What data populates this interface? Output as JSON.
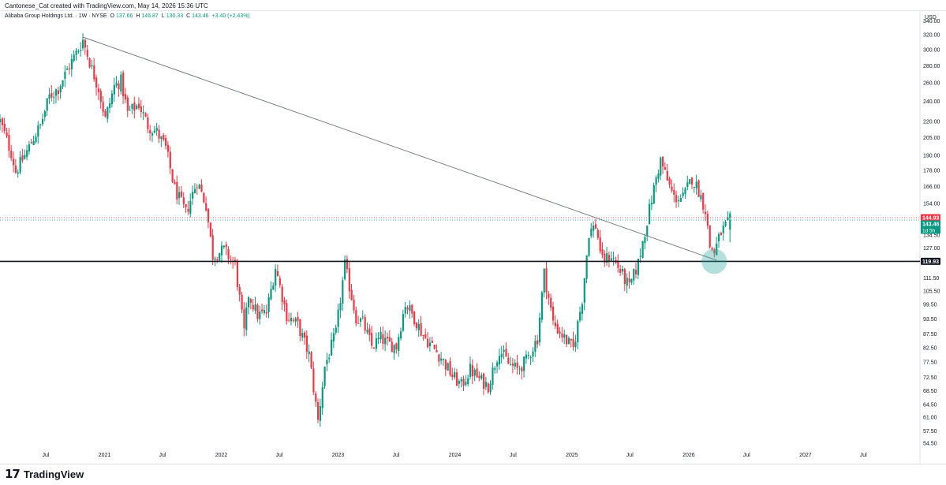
{
  "header": {
    "caption": "Cantonese_Cat created with TradingView.com, May 14, 2026 15:36 UTC"
  },
  "legend": {
    "symbol": "Alibaba Group Holdings Ltd. · 1W · NYSE",
    "o_label": "O",
    "o_value": "137.66",
    "h_label": "H",
    "h_value": "146.87",
    "l_label": "L",
    "l_value": "130.33",
    "c_label": "C",
    "c_value": "143.46",
    "change": "+3.40 (+2.43%)"
  },
  "branding": {
    "logo_glyph": "17",
    "name": "TradingView"
  },
  "colors": {
    "up": "#089981",
    "down": "#f23645",
    "support": "#131722",
    "trendline": "#787b86",
    "highlight": "#26a69a"
  },
  "chart_data": {
    "type": "candlestick",
    "symbol": "Alibaba Group Holdings Ltd.",
    "interval": "1W",
    "exchange": "NYSE",
    "currency_label": "USD",
    "y_scale": "log",
    "ylim": [
      53.8,
      350
    ],
    "y_ticks": [
      "340.00",
      "320.00",
      "300.00",
      "280.00",
      "260.00",
      "240.00",
      "220.00",
      "205.00",
      "190.00",
      "178.00",
      "166.00",
      "154.00",
      "134.50",
      "127.00",
      "111.50",
      "105.50",
      "99.50",
      "93.50",
      "87.50",
      "82.50",
      "77.50",
      "72.50",
      "68.50",
      "64.50",
      "61.00",
      "57.50",
      "54.50"
    ],
    "x_ticks": [
      {
        "label": "Jul",
        "date": "2020-07-01"
      },
      {
        "label": "2021",
        "date": "2021-01-01"
      },
      {
        "label": "Jul",
        "date": "2021-07-01"
      },
      {
        "label": "2022",
        "date": "2022-01-01"
      },
      {
        "label": "Jul",
        "date": "2022-07-01"
      },
      {
        "label": "2023",
        "date": "2023-01-01"
      },
      {
        "label": "Jul",
        "date": "2023-07-01"
      },
      {
        "label": "2024",
        "date": "2024-01-01"
      },
      {
        "label": "Jul",
        "date": "2024-07-01"
      },
      {
        "label": "2025",
        "date": "2025-01-01"
      },
      {
        "label": "Jul",
        "date": "2025-07-01"
      },
      {
        "label": "2026",
        "date": "2026-01-01"
      },
      {
        "label": "Jul",
        "date": "2026-07-01"
      },
      {
        "label": "2027",
        "date": "2027-01-01"
      },
      {
        "label": "Jul",
        "date": "2027-07-01"
      }
    ],
    "xlim": [
      "2020-02-09",
      "2027-12-25"
    ],
    "price_labels": [
      {
        "value": "144.93",
        "price": 144.93,
        "color": "#f23645"
      },
      {
        "value": "143.46",
        "price": 143.46,
        "color": "#089981",
        "sub": "1d 5h"
      },
      {
        "value": "119.93",
        "price": 119.93,
        "color": "#131722"
      }
    ],
    "support_line": {
      "price": 119.93
    },
    "trendline": {
      "start": {
        "date": "2020-10-25",
        "price": 317
      },
      "end": {
        "date": "2026-03-29",
        "price": 120.5
      }
    },
    "highlight": {
      "date": "2026-03-22",
      "price": 119.93
    },
    "anchors": [
      [
        "2020-02-09",
        220
      ],
      [
        "2020-03-15",
        192
      ],
      [
        "2020-03-29",
        177
      ],
      [
        "2020-05-03",
        193
      ],
      [
        "2020-05-24",
        205
      ],
      [
        "2020-06-14",
        216
      ],
      [
        "2020-07-12",
        245
      ],
      [
        "2020-08-09",
        254
      ],
      [
        "2020-09-06",
        275
      ],
      [
        "2020-10-11",
        301
      ],
      [
        "2020-10-25",
        313
      ],
      [
        "2020-11-22",
        276
      ],
      [
        "2020-12-13",
        254
      ],
      [
        "2021-01-03",
        222
      ],
      [
        "2021-01-31",
        256
      ],
      [
        "2021-02-21",
        262
      ],
      [
        "2021-03-14",
        228
      ],
      [
        "2021-04-18",
        237
      ],
      [
        "2021-05-16",
        216
      ],
      [
        "2021-06-13",
        210
      ],
      [
        "2021-07-11",
        196
      ],
      [
        "2021-08-08",
        164
      ],
      [
        "2021-09-12",
        148
      ],
      [
        "2021-10-17",
        170
      ],
      [
        "2021-11-14",
        153
      ],
      [
        "2021-12-05",
        123
      ],
      [
        "2022-01-09",
        126
      ],
      [
        "2022-02-13",
        118
      ],
      [
        "2022-03-13",
        88
      ],
      [
        "2022-03-27",
        104
      ],
      [
        "2022-04-24",
        95
      ],
      [
        "2022-05-22",
        96
      ],
      [
        "2022-06-19",
        117
      ],
      [
        "2022-07-24",
        95
      ],
      [
        "2022-08-28",
        91
      ],
      [
        "2022-10-02",
        80
      ],
      [
        "2022-10-30",
        60
      ],
      [
        "2022-11-20",
        76
      ],
      [
        "2022-12-25",
        88
      ],
      [
        "2023-01-22",
        118
      ],
      [
        "2023-02-26",
        94
      ],
      [
        "2023-03-19",
        92
      ],
      [
        "2023-04-16",
        83
      ],
      [
        "2023-05-14",
        86
      ],
      [
        "2023-06-04",
        84
      ],
      [
        "2023-07-02",
        83
      ],
      [
        "2023-07-30",
        100
      ],
      [
        "2023-08-27",
        94
      ],
      [
        "2023-09-24",
        87
      ],
      [
        "2023-10-22",
        83
      ],
      [
        "2023-11-19",
        79
      ],
      [
        "2023-12-24",
        73
      ],
      [
        "2024-01-21",
        70
      ],
      [
        "2024-02-18",
        75
      ],
      [
        "2024-03-17",
        72
      ],
      [
        "2024-04-14",
        70
      ],
      [
        "2024-05-19",
        82
      ],
      [
        "2024-06-16",
        77
      ],
      [
        "2024-07-14",
        75
      ],
      [
        "2024-08-11",
        78
      ],
      [
        "2024-09-15",
        86
      ],
      [
        "2024-10-06",
        114
      ],
      [
        "2024-11-03",
        92
      ],
      [
        "2024-12-08",
        86
      ],
      [
        "2025-01-05",
        82
      ],
      [
        "2025-02-02",
        102
      ],
      [
        "2025-02-23",
        136
      ],
      [
        "2025-03-16",
        140
      ],
      [
        "2025-04-06",
        120
      ],
      [
        "2025-05-04",
        123
      ],
      [
        "2025-06-01",
        115
      ],
      [
        "2025-06-29",
        107
      ],
      [
        "2025-07-27",
        119
      ],
      [
        "2025-08-31",
        150
      ],
      [
        "2025-09-21",
        172
      ],
      [
        "2025-10-05",
        186
      ],
      [
        "2025-10-26",
        170
      ],
      [
        "2025-11-16",
        158
      ],
      [
        "2025-12-14",
        158
      ],
      [
        "2026-01-11",
        172
      ],
      [
        "2026-02-01",
        163
      ],
      [
        "2026-02-22",
        150
      ],
      [
        "2026-03-08",
        128
      ],
      [
        "2026-03-22",
        125
      ],
      [
        "2026-04-12",
        136
      ],
      [
        "2026-05-10",
        143.46
      ]
    ],
    "last_candle": {
      "date": "2026-05-10",
      "open": 137.66,
      "high": 146.87,
      "low": 130.33,
      "close": 143.46
    }
  }
}
